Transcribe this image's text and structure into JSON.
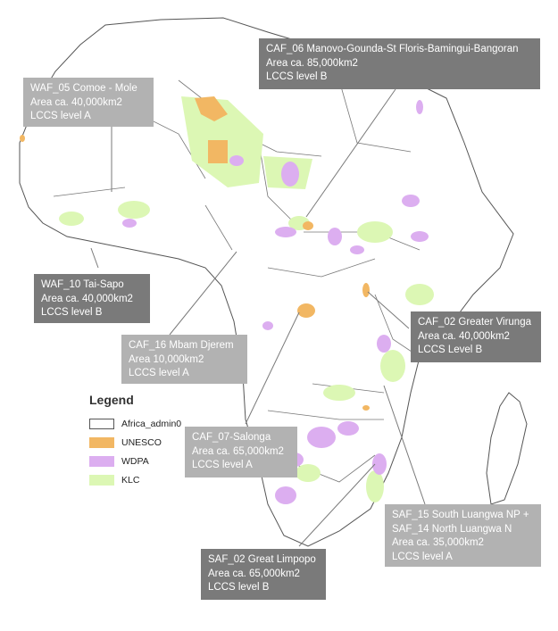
{
  "legend": {
    "title": "Legend",
    "items": [
      {
        "label": "Africa_admin0",
        "color": "#ffffff",
        "border": "#555555"
      },
      {
        "label": "UNESCO",
        "color": "#f2b763",
        "border": "#f2b763"
      },
      {
        "label": "WDPA",
        "color": "#dcaef0",
        "border": "#dcaef0"
      },
      {
        "label": "KLC",
        "color": "#dcf7b4",
        "border": "#dcf7b4"
      }
    ]
  },
  "callouts": [
    {
      "id": "caf06",
      "lines": [
        "CAF_06 Manovo-Gounda-St Floris-Bamingui-Bangoran",
        "Area ca. 85,000km2",
        "LCCS level B"
      ]
    },
    {
      "id": "waf05",
      "lines": [
        "WAF_05 Comoe  -  Mole",
        "Area ca. 40,000km2",
        "LCCS level  A"
      ]
    },
    {
      "id": "waf10",
      "lines": [
        "WAF_10 Tai-Sapo",
        "Area ca. 40,000km2",
        "LCCS level B"
      ]
    },
    {
      "id": "caf02",
      "lines": [
        "CAF_02 Greater Virunga",
        "Area ca. 40,000km2",
        "LCCS Level B"
      ]
    },
    {
      "id": "caf16",
      "lines": [
        "CAF_16 Mbam Djerem",
        "Area 10,000km2",
        "LCCS level A"
      ]
    },
    {
      "id": "caf07",
      "lines": [
        "CAF_07-Salonga",
        "Area ca. 65,000km2",
        "LCCS level A"
      ]
    },
    {
      "id": "saf15",
      "lines": [
        "SAF_15 South Luangwa NP +",
        "SAF_14 North Luangwa N",
        "Area ca. 35,000km2",
        "LCCS level  A"
      ]
    },
    {
      "id": "saf02",
      "lines": [
        "SAF_02 Great Limpopo",
        "Area ca. 65,000km2",
        "LCCS level B"
      ]
    }
  ]
}
